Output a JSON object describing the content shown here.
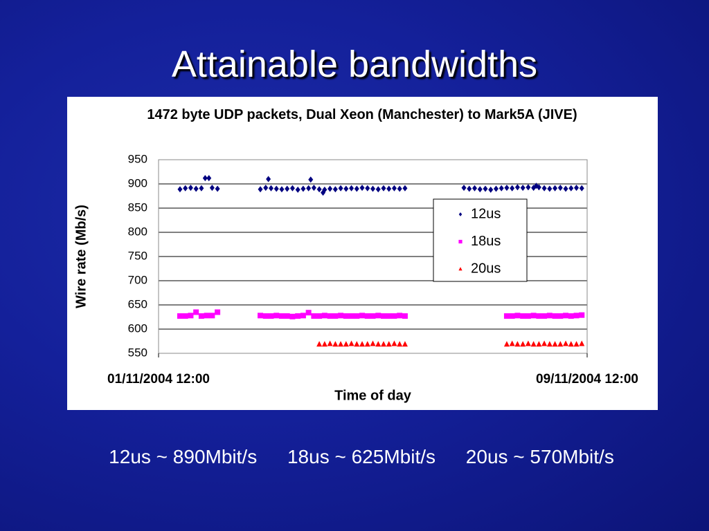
{
  "slide": {
    "title": "Attainable bandwidths",
    "captions": [
      "12us ~ 890Mbit/s",
      "18us ~ 625Mbit/s",
      "20us ~ 570Mbit/s"
    ]
  },
  "chart_data": {
    "type": "scatter",
    "title": "1472 byte UDP packets, Dual Xeon (Manchester) to Mark5A (JIVE)",
    "xlabel": "Time of day",
    "ylabel": "Wire rate (Mb/s)",
    "xlim": [
      0,
      8
    ],
    "xticks": [
      {
        "value": 0,
        "label": "01/11/2004 12:00"
      },
      {
        "value": 8,
        "label": "09/11/2004 12:00"
      }
    ],
    "ylim": [
      550,
      950
    ],
    "yticks": [
      550,
      600,
      650,
      700,
      750,
      800,
      850,
      900,
      950
    ],
    "grid": true,
    "legend": "upper right",
    "series": [
      {
        "name": "12us",
        "color": "#000080",
        "marker": "diamond",
        "x": [
          0.4,
          0.5,
          0.6,
          0.7,
          0.8,
          0.87,
          0.94,
          1.0,
          1.1,
          1.9,
          2.0,
          2.05,
          2.1,
          2.2,
          2.3,
          2.4,
          2.5,
          2.6,
          2.7,
          2.8,
          2.84,
          2.9,
          3.0,
          3.07,
          3.1,
          3.2,
          3.3,
          3.4,
          3.5,
          3.6,
          3.7,
          3.8,
          3.9,
          4.0,
          4.1,
          4.2,
          4.3,
          4.4,
          4.5,
          4.6,
          5.7,
          5.8,
          5.9,
          6.0,
          6.1,
          6.2,
          6.3,
          6.4,
          6.5,
          6.6,
          6.7,
          6.8,
          6.9,
          7.0,
          7.05,
          7.1,
          7.2,
          7.3,
          7.4,
          7.5,
          7.6,
          7.7,
          7.8,
          7.9
        ],
        "values": [
          889,
          891,
          892,
          890,
          891,
          912,
          912,
          892,
          890,
          889,
          892,
          910,
          891,
          890,
          889,
          890,
          891,
          888,
          890,
          891,
          909,
          892,
          889,
          882,
          888,
          890,
          889,
          891,
          890,
          891,
          890,
          892,
          891,
          890,
          889,
          891,
          890,
          891,
          890,
          891,
          892,
          890,
          891,
          889,
          890,
          888,
          890,
          891,
          892,
          891,
          893,
          892,
          893,
          892,
          896,
          893,
          891,
          890,
          891,
          892,
          890,
          891,
          892,
          891
        ]
      },
      {
        "name": "18us",
        "color": "#ff00ff",
        "marker": "square",
        "x": [
          0.4,
          0.5,
          0.6,
          0.7,
          0.8,
          0.9,
          1.0,
          1.1,
          1.9,
          2.0,
          2.1,
          2.2,
          2.3,
          2.4,
          2.5,
          2.6,
          2.7,
          2.8,
          2.9,
          3.0,
          3.1,
          3.2,
          3.3,
          3.4,
          3.5,
          3.6,
          3.7,
          3.8,
          3.9,
          4.0,
          4.1,
          4.2,
          4.3,
          4.4,
          4.5,
          4.6,
          6.5,
          6.6,
          6.7,
          6.8,
          6.9,
          7.0,
          7.1,
          7.2,
          7.3,
          7.4,
          7.5,
          7.6,
          7.7,
          7.8,
          7.9
        ],
        "values": [
          627,
          627,
          628,
          635,
          627,
          628,
          628,
          635,
          628,
          627,
          627,
          628,
          627,
          627,
          626,
          627,
          628,
          634,
          627,
          627,
          628,
          627,
          627,
          628,
          627,
          627,
          627,
          628,
          627,
          627,
          628,
          627,
          627,
          627,
          628,
          627,
          627,
          627,
          628,
          627,
          627,
          628,
          627,
          627,
          628,
          627,
          627,
          628,
          627,
          628,
          629
        ]
      },
      {
        "name": "20us",
        "color": "#ff0000",
        "marker": "triangle",
        "x": [
          3.0,
          3.1,
          3.2,
          3.3,
          3.4,
          3.5,
          3.6,
          3.7,
          3.8,
          3.9,
          4.0,
          4.1,
          4.2,
          4.3,
          4.4,
          4.5,
          4.6,
          6.5,
          6.6,
          6.7,
          6.8,
          6.9,
          7.0,
          7.1,
          7.2,
          7.3,
          7.4,
          7.5,
          7.6,
          7.7,
          7.8,
          7.9
        ],
        "values": [
          569,
          569,
          570,
          569,
          569,
          569,
          570,
          569,
          569,
          569,
          570,
          569,
          569,
          569,
          570,
          569,
          569,
          569,
          570,
          569,
          569,
          570,
          569,
          569,
          570,
          569,
          569,
          569,
          570,
          569,
          569,
          570
        ]
      }
    ]
  }
}
